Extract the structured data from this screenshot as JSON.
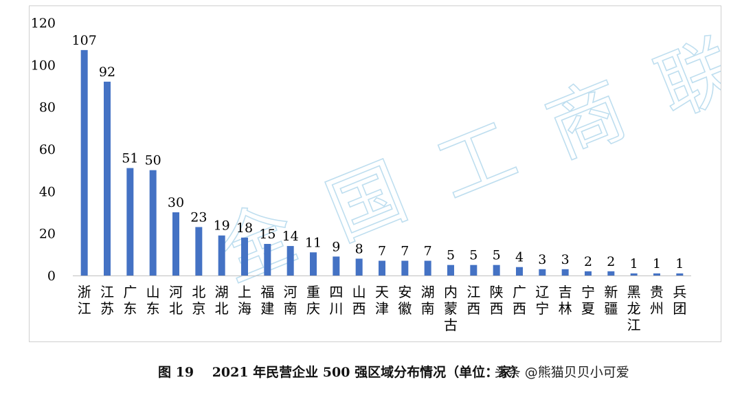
{
  "chart_data": {
    "type": "bar",
    "categories": [
      "浙江",
      "江苏",
      "广东",
      "山东",
      "河北",
      "北京",
      "湖北",
      "上海",
      "福建",
      "河南",
      "重庆",
      "四川",
      "山西",
      "天津",
      "安徽",
      "湖南",
      "内蒙古",
      "江西",
      "陕西",
      "广西",
      "辽宁",
      "吉林",
      "宁夏",
      "新疆",
      "黑龙江",
      "贵州",
      "兵团"
    ],
    "values": [
      107,
      92,
      51,
      50,
      30,
      23,
      19,
      18,
      15,
      14,
      11,
      9,
      8,
      7,
      7,
      7,
      5,
      5,
      5,
      4,
      3,
      3,
      2,
      2,
      1,
      1,
      1
    ],
    "ylim": [
      0,
      120
    ],
    "yticks": [
      0,
      20,
      40,
      60,
      80,
      100,
      120
    ],
    "bar_color": "#4472c4",
    "grid": false,
    "title": "",
    "xlabel": "",
    "ylabel": ""
  },
  "watermark": "全国工商联",
  "caption": {
    "figure_no": "图 19",
    "title": "2021 年民营企业 500 强区域分布情况（单位：家）",
    "source_watermark": "头条 @熊猫贝贝小可爱"
  }
}
